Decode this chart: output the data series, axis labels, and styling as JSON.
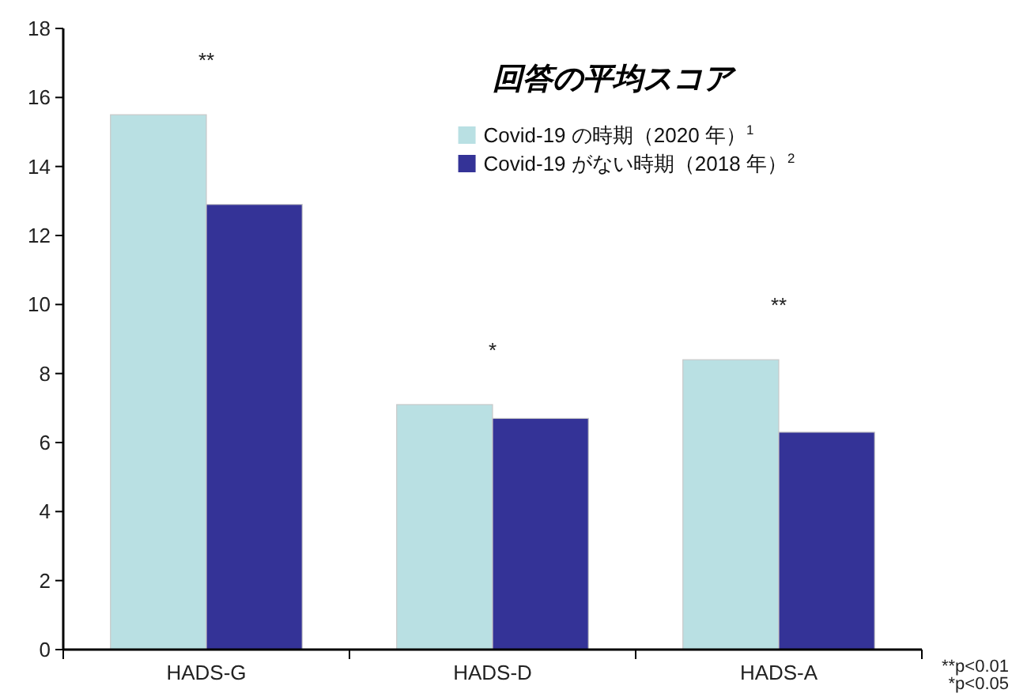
{
  "chart_data": {
    "type": "bar",
    "title": "回答の平均スコア",
    "categories": [
      "HADS-G",
      "HADS-D",
      "HADS-A"
    ],
    "series": [
      {
        "name": "Covid-19 の時期（2020 年）$^{1}$",
        "color": "#b9e0e3",
        "values": [
          15.5,
          7.1,
          8.4
        ]
      },
      {
        "name": "Covid-19 がない時期（2018 年）$^{2}$",
        "color": "#343397",
        "values": [
          12.9,
          6.7,
          6.3
        ]
      }
    ],
    "ylim": [
      0,
      18
    ],
    "yticks": [
      0,
      2,
      4,
      6,
      8,
      10,
      12,
      14,
      16,
      18
    ],
    "grid": false,
    "legend": "top right",
    "annotations": [
      "**",
      "*",
      "**",
      "**p<0.01",
      "*p<0.05"
    ]
  }
}
